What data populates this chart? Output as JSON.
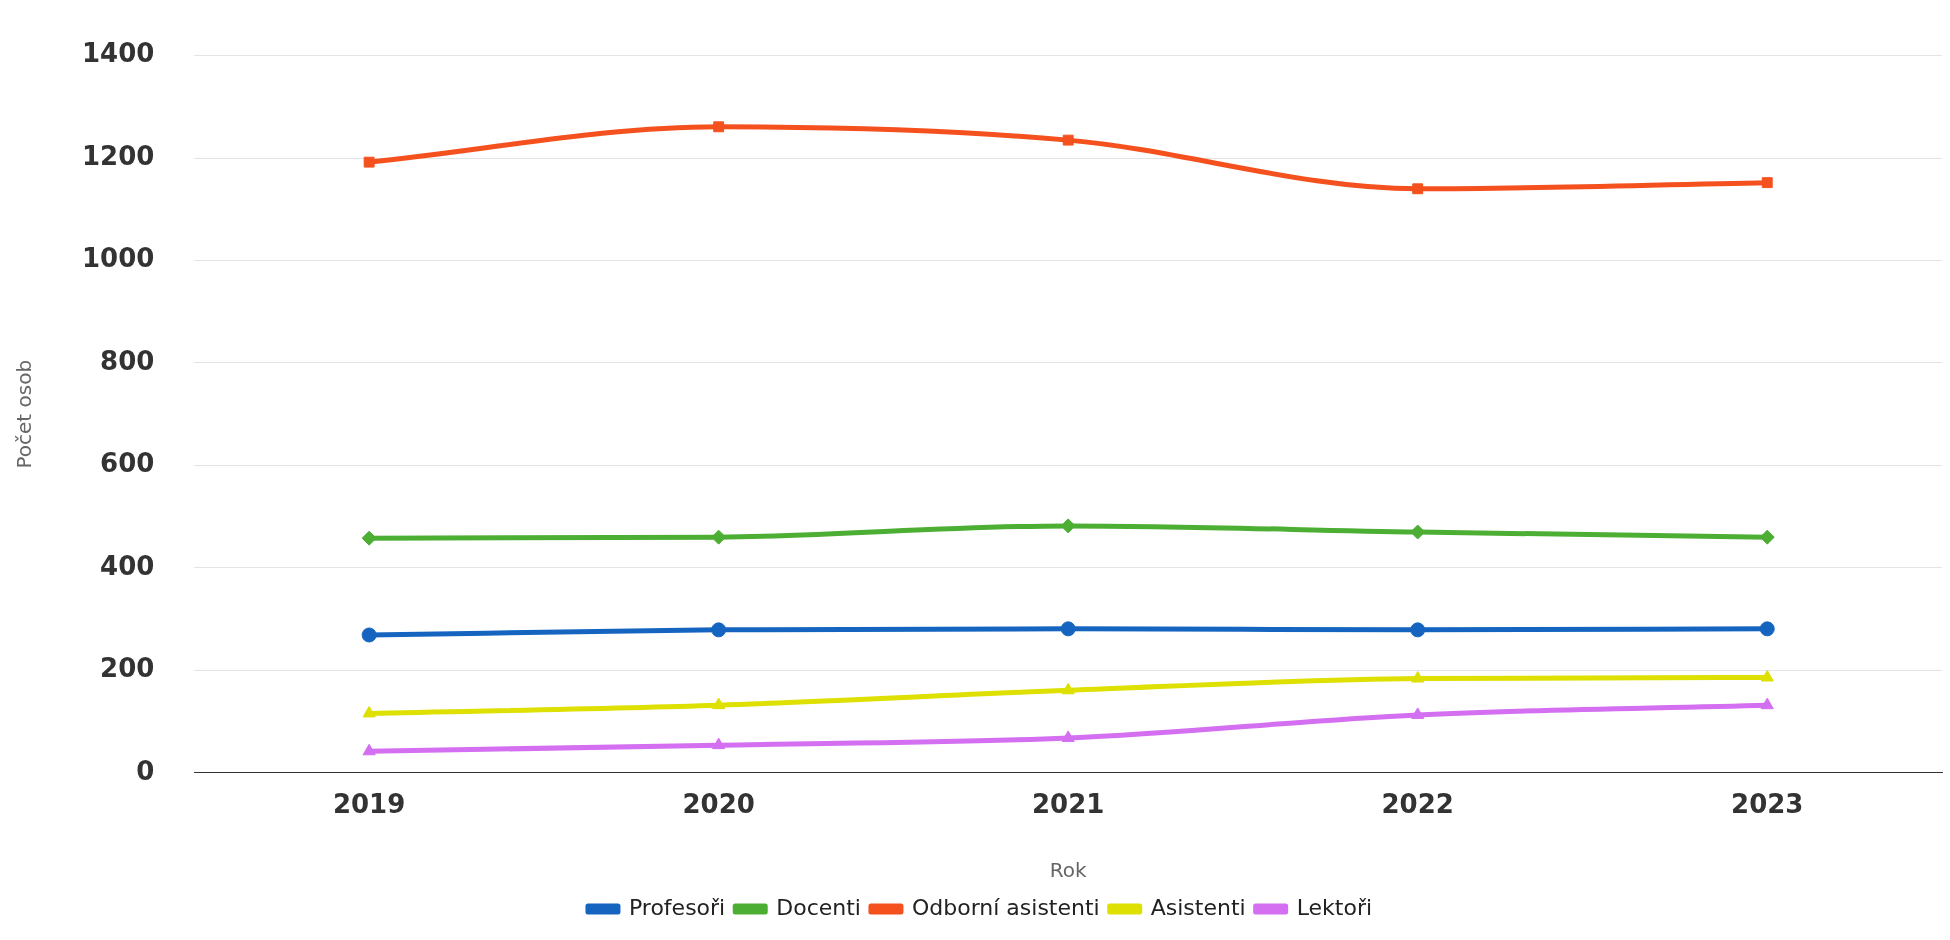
{
  "chart_data": {
    "type": "line",
    "xlabel": "Rok",
    "ylabel": "Počet osob",
    "categories": [
      "2019",
      "2020",
      "2021",
      "2022",
      "2023"
    ],
    "series": [
      {
        "name": "Profesoři",
        "color": "#1565c0",
        "marker": "circle",
        "values": [
          269,
          279,
          281,
          279,
          281
        ]
      },
      {
        "name": "Docenti",
        "color": "#4caf34",
        "marker": "diamond",
        "values": [
          458,
          460,
          482,
          470,
          460
        ]
      },
      {
        "name": "Odborní asistenti",
        "color": "#f4511e",
        "marker": "square",
        "values": [
          1192,
          1261,
          1235,
          1140,
          1152
        ]
      },
      {
        "name": "Asistenti",
        "color": "#dde000",
        "marker": "triangle",
        "values": [
          116,
          132,
          161,
          184,
          186
        ]
      },
      {
        "name": "Lektoři",
        "color": "#d36ff0",
        "marker": "triangle",
        "values": [
          42,
          54,
          68,
          113,
          132
        ]
      }
    ],
    "ylim": [
      0,
      1400
    ],
    "yticks": [
      0,
      200,
      400,
      600,
      800,
      1000,
      1200,
      1400
    ],
    "grid": "y",
    "legend": "bottom",
    "line_style": "solid"
  }
}
